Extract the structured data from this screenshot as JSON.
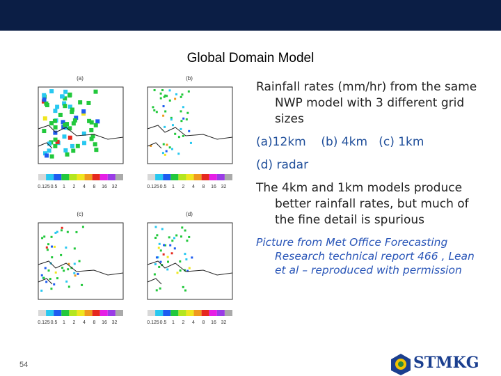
{
  "header": {
    "title": "Global Domain Model"
  },
  "panels": [
    {
      "label": "(a)"
    },
    {
      "label": "(b)"
    },
    {
      "label": "(c)"
    },
    {
      "label": "(d)"
    }
  ],
  "colorbar_labels": [
    "0.125",
    "0.5",
    "1",
    "2",
    "4",
    "8",
    "16",
    "32"
  ],
  "bullets": [
    "Rainfall rates (mm/hr) from the same NWP model with 3 different grid sizes",
    "(a)12km    (b) 4km   (c) 1km",
    "(d) radar",
    "The 4km and 1km models produce better rainfall rates, but much of the fine detail is spurious"
  ],
  "citation": "Picture from Met Office Forecasting Research technical report 466 , Lean et al – reproduced with permission",
  "footer": {
    "page_number": "54",
    "logo": "STMKG"
  }
}
